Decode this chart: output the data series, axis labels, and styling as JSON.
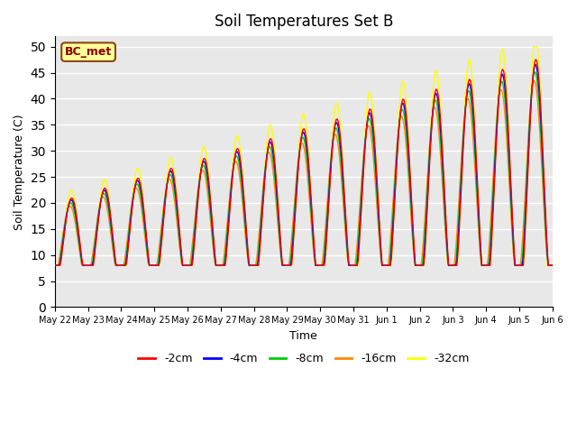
{
  "title": "Soil Temperatures Set B",
  "xlabel": "Time",
  "ylabel": "Soil Temperature (C)",
  "ylim": [
    0,
    52
  ],
  "yticks": [
    0,
    5,
    10,
    15,
    20,
    25,
    30,
    35,
    40,
    45,
    50
  ],
  "annotation": "BC_met",
  "series_labels": [
    "-2cm",
    "-4cm",
    "-8cm",
    "-16cm",
    "-32cm"
  ],
  "series_colors": [
    "#ff0000",
    "#0000ff",
    "#00cc00",
    "#ff8800",
    "#ffff00"
  ],
  "background_color": "#e8e8e8",
  "x_dates": [
    "May 22",
    "May 23",
    "May 24",
    "May 25",
    "May 26",
    "May 27",
    "May 28",
    "May 29",
    "May 30",
    "May 31",
    "Jun 1",
    "Jun 2",
    "Jun 3",
    "Jun 4",
    "Jun 5",
    "Jun 6"
  ],
  "line_width": 1.0
}
